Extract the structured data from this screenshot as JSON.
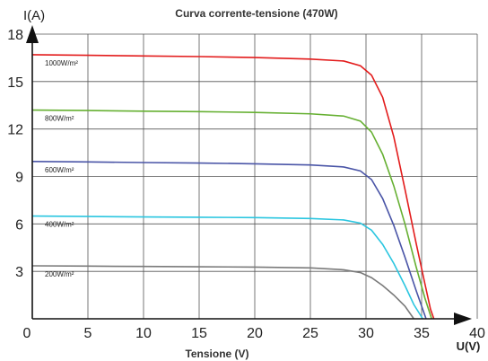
{
  "chart_data": {
    "type": "line",
    "title": "Curva corrente-tensione (470W)",
    "xlabel": "Tensione (V)",
    "x_unit": "U(V)",
    "ylabel": "I(A)",
    "xlim": [
      0,
      40
    ],
    "ylim": [
      0,
      18
    ],
    "xticks": [
      0,
      5,
      10,
      15,
      20,
      25,
      30,
      35,
      40
    ],
    "yticks": [
      3,
      6,
      9,
      12,
      15,
      18
    ],
    "grid": true,
    "series": [
      {
        "name": "1000W/m²",
        "color": "#e31c1c",
        "points": [
          [
            0,
            16.7
          ],
          [
            5,
            16.66
          ],
          [
            10,
            16.62
          ],
          [
            15,
            16.58
          ],
          [
            20,
            16.52
          ],
          [
            25,
            16.42
          ],
          [
            28,
            16.3
          ],
          [
            29.5,
            16.0
          ],
          [
            30.5,
            15.4
          ],
          [
            31.5,
            14.0
          ],
          [
            32.5,
            11.5
          ],
          [
            33.5,
            8.2
          ],
          [
            34.5,
            4.8
          ],
          [
            35.3,
            2.2
          ],
          [
            35.8,
            0.6
          ],
          [
            36.1,
            0
          ]
        ]
      },
      {
        "name": "800W/m²",
        "color": "#66b032",
        "points": [
          [
            0,
            13.2
          ],
          [
            5,
            13.17
          ],
          [
            10,
            13.13
          ],
          [
            15,
            13.1
          ],
          [
            20,
            13.05
          ],
          [
            25,
            12.96
          ],
          [
            28,
            12.82
          ],
          [
            29.5,
            12.5
          ],
          [
            30.5,
            11.8
          ],
          [
            31.5,
            10.4
          ],
          [
            32.5,
            8.4
          ],
          [
            33.5,
            6.0
          ],
          [
            34.5,
            3.3
          ],
          [
            35.3,
            1.3
          ],
          [
            35.9,
            0
          ]
        ]
      },
      {
        "name": "600W/m²",
        "color": "#4a55a7",
        "points": [
          [
            0,
            9.95
          ],
          [
            5,
            9.92
          ],
          [
            10,
            9.88
          ],
          [
            15,
            9.85
          ],
          [
            20,
            9.8
          ],
          [
            25,
            9.73
          ],
          [
            28,
            9.6
          ],
          [
            29.5,
            9.35
          ],
          [
            30.5,
            8.8
          ],
          [
            31.5,
            7.6
          ],
          [
            32.5,
            5.9
          ],
          [
            33.5,
            3.9
          ],
          [
            34.5,
            1.8
          ],
          [
            35.4,
            0
          ]
        ]
      },
      {
        "name": "400W/m²",
        "color": "#2bc6e0",
        "points": [
          [
            0,
            6.5
          ],
          [
            5,
            6.47
          ],
          [
            10,
            6.44
          ],
          [
            15,
            6.42
          ],
          [
            20,
            6.4
          ],
          [
            25,
            6.34
          ],
          [
            28,
            6.25
          ],
          [
            29.5,
            6.05
          ],
          [
            30.5,
            5.6
          ],
          [
            31.5,
            4.7
          ],
          [
            32.5,
            3.5
          ],
          [
            33.5,
            2.1
          ],
          [
            34.3,
            0.9
          ],
          [
            35.1,
            0
          ]
        ]
      },
      {
        "name": "200W/m²",
        "color": "#7a7a7a",
        "points": [
          [
            0,
            3.35
          ],
          [
            5,
            3.33
          ],
          [
            10,
            3.31
          ],
          [
            15,
            3.29
          ],
          [
            20,
            3.27
          ],
          [
            25,
            3.22
          ],
          [
            28,
            3.1
          ],
          [
            29.5,
            2.92
          ],
          [
            30.5,
            2.6
          ],
          [
            31.5,
            2.1
          ],
          [
            32.5,
            1.5
          ],
          [
            33.5,
            0.8
          ],
          [
            34.3,
            0
          ]
        ]
      }
    ]
  }
}
